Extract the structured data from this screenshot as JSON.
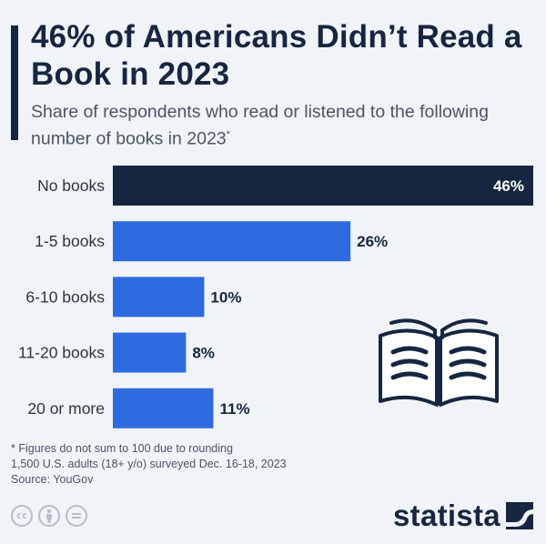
{
  "header": {
    "title": "46% of Americans Didn’t Read a Book in 2023",
    "subtitle": "Share of respondents who read or listened to the following number of books in 2023",
    "subtitle_marker": "*"
  },
  "chart_data": {
    "type": "bar",
    "orientation": "horizontal",
    "categories": [
      "No books",
      "1-5 books",
      "6-10 books",
      "11-20 books",
      "20 or more"
    ],
    "values": [
      46,
      26,
      10,
      8,
      11
    ],
    "value_labels": [
      "46%",
      "26%",
      "10%",
      "8%",
      "11%"
    ],
    "unit": "%",
    "xlim": [
      0,
      46
    ],
    "grid": false,
    "colors": {
      "highlight": "#172640",
      "default": "#2f6be0"
    },
    "highlight_index": 0
  },
  "footer": {
    "footnote_1": "* Figures do not sum to 100 due to rounding",
    "footnote_2": "1,500 U.S. adults (18+ y/o) surveyed Dec. 16-18, 2023",
    "source": "Source: YouGov",
    "license_icons": [
      "cc",
      "person",
      "equals"
    ],
    "brand": "statista"
  },
  "illustration": {
    "icon": "open-book-icon"
  }
}
